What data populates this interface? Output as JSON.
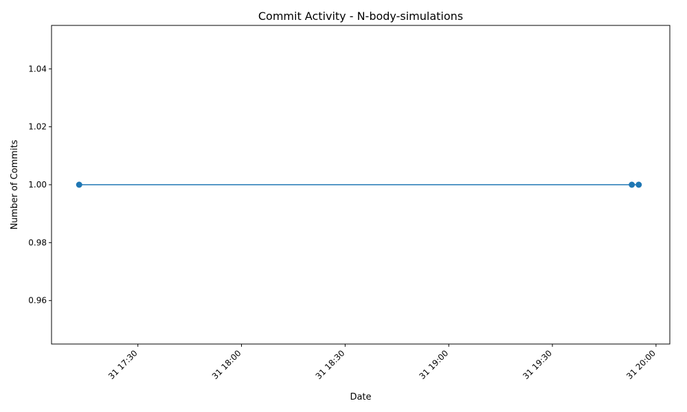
{
  "chart_data": {
    "type": "line",
    "title": "Commit Activity - N-body-simulations",
    "xlabel": "Date",
    "ylabel": "Number of Commits",
    "x": [
      "31 17:13",
      "31 19:53",
      "31 19:55"
    ],
    "values": [
      1,
      1,
      1
    ],
    "xlim": [
      "31 17:05",
      "31 20:04"
    ],
    "ylim": [
      0.945,
      1.055
    ],
    "x_ticks": [
      "31 17:30",
      "31 18:00",
      "31 18:30",
      "31 19:00",
      "31 19:30",
      "31 20:00"
    ],
    "y_ticks": [
      "0.96",
      "0.98",
      "1.00",
      "1.02",
      "1.04"
    ],
    "grid": false,
    "marker": "circle",
    "color": "#1f77b4"
  }
}
